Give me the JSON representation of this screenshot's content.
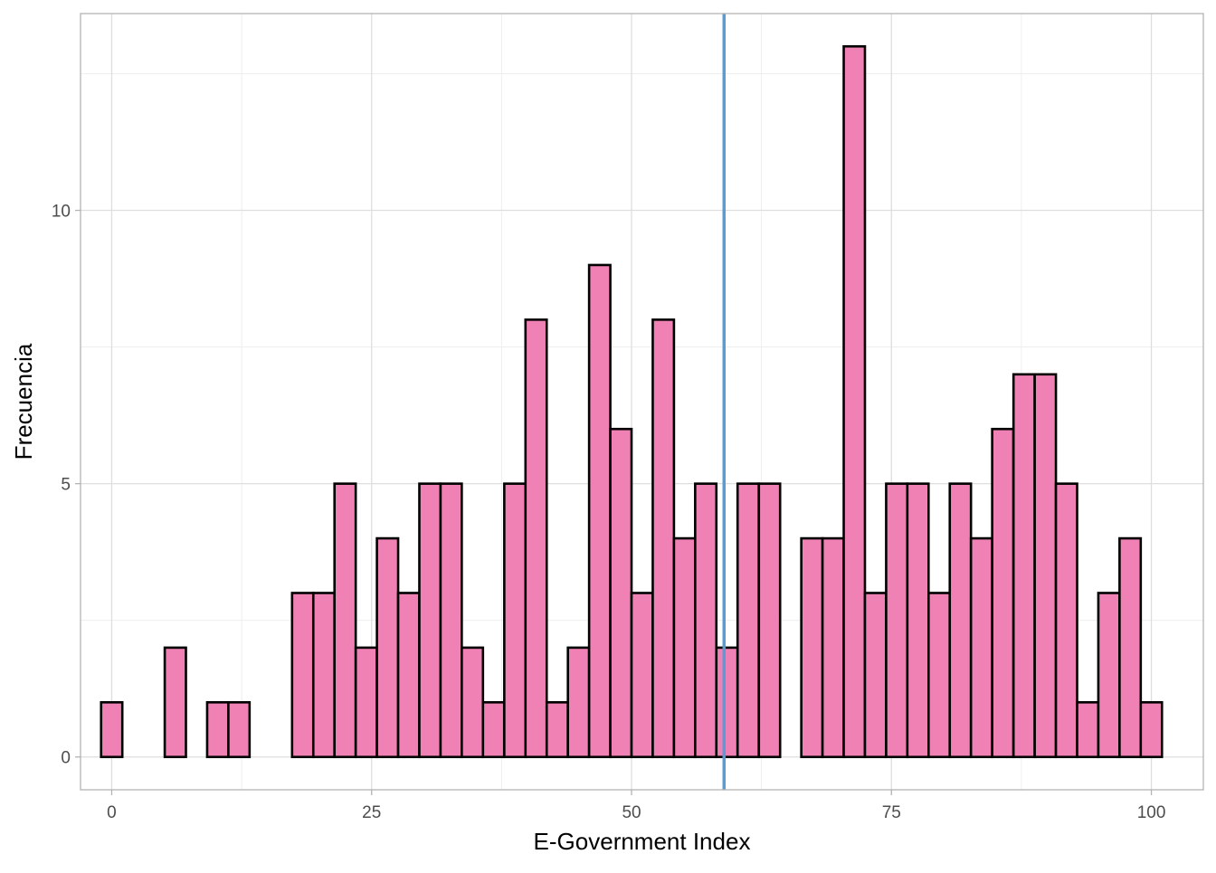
{
  "chart_data": {
    "type": "bar",
    "subtype": "histogram",
    "xlabel": "E-Government Index",
    "ylabel": "Frecuencia",
    "xlim": [
      -3,
      105
    ],
    "ylim": [
      -0.6,
      13.6
    ],
    "x_ticks": [
      0,
      25,
      50,
      75,
      100
    ],
    "y_ticks": [
      0,
      5,
      10
    ],
    "x_tick_labels": [
      "0",
      "25",
      "50",
      "75",
      "100"
    ],
    "y_tick_labels": [
      "0",
      "5",
      "10"
    ],
    "bin_width": 2.04,
    "bin_centers": [
      0,
      2.04,
      4.08,
      6.12,
      8.16,
      10.2,
      12.24,
      14.28,
      16.32,
      18.37,
      20.41,
      22.45,
      24.49,
      26.53,
      28.57,
      30.61,
      32.65,
      34.69,
      36.73,
      38.78,
      40.82,
      42.86,
      44.9,
      46.94,
      48.98,
      51.02,
      53.06,
      55.1,
      57.14,
      59.18,
      61.22,
      63.27,
      65.31,
      67.35,
      69.39,
      71.43,
      73.47,
      75.51,
      77.55,
      79.59,
      81.63,
      83.67,
      85.71,
      87.76,
      89.8,
      91.84,
      93.88,
      95.92,
      97.96,
      100
    ],
    "counts": [
      1,
      0,
      0,
      2,
      0,
      1,
      1,
      0,
      0,
      3,
      3,
      5,
      2,
      4,
      3,
      5,
      5,
      2,
      1,
      5,
      8,
      1,
      2,
      9,
      6,
      3,
      8,
      4,
      5,
      2,
      5,
      5,
      0,
      4,
      4,
      13,
      3,
      5,
      5,
      3,
      5,
      4,
      6,
      7,
      7,
      5,
      1,
      3,
      4,
      1
    ],
    "reference_line_x": 58.9,
    "grid": true,
    "colors": {
      "bar_fill": "#f081b5",
      "bar_edge": "#000000",
      "reference_line": "#5b9bd5",
      "grid_major": "#dedede",
      "grid_minor": "#ececec",
      "panel_border": "#b3b3b3"
    }
  }
}
